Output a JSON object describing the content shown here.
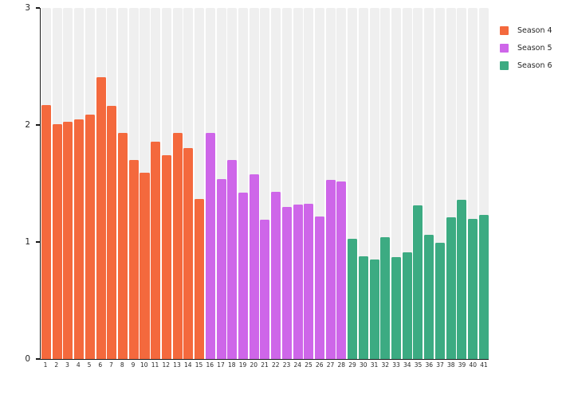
{
  "chart_data": {
    "type": "bar",
    "title": "",
    "xlabel": "",
    "ylabel": "",
    "ylim": [
      0,
      3
    ],
    "yticks": [
      "0",
      "1",
      "2",
      "3"
    ],
    "grid": "per-category background bands",
    "band_color": "#efefef",
    "axis_color": "#1a1a1a",
    "legend_position": "top-right",
    "categories": [
      "1",
      "2",
      "3",
      "4",
      "5",
      "6",
      "7",
      "8",
      "9",
      "10",
      "11",
      "12",
      "13",
      "14",
      "15",
      "16",
      "17",
      "18",
      "19",
      "20",
      "21",
      "22",
      "23",
      "24",
      "25",
      "26",
      "27",
      "28",
      "29",
      "30",
      "31",
      "32",
      "33",
      "34",
      "35",
      "36",
      "37",
      "38",
      "39",
      "40",
      "41"
    ],
    "series": [
      {
        "name": "Season 4",
        "color": "#f4693d",
        "values": [
          2.17,
          2.01,
          2.03,
          2.05,
          2.09,
          2.41,
          2.16,
          1.93,
          1.7,
          1.59,
          1.86,
          1.74,
          1.93,
          1.8,
          1.37
        ]
      },
      {
        "name": "Season 5",
        "color": "#ce66e9",
        "values": [
          1.93,
          1.54,
          1.7,
          1.42,
          1.58,
          1.19,
          1.43,
          1.3,
          1.32,
          1.33,
          1.22,
          1.53,
          1.52
        ]
      },
      {
        "name": "Season 6",
        "color": "#3cab82",
        "values": [
          1.03,
          0.88,
          0.85,
          1.04,
          0.87,
          0.91,
          1.31,
          1.06,
          0.99,
          1.21,
          1.36,
          1.2,
          1.23
        ]
      }
    ]
  }
}
